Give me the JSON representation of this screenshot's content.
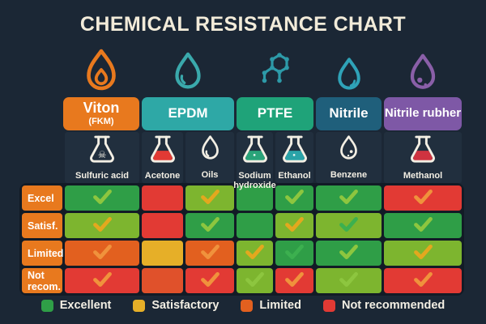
{
  "title": "CHEMICAL RESISTANCE CHART",
  "palette": {
    "background": "#1b2735",
    "panel": "#212f3e",
    "panel_gap": "#121b26",
    "title_text": "#f2ebd9",
    "ink_white": "#f3efe4",
    "label_orange": "#e8791e",
    "cell": {
      "green": "#2f9e47",
      "lightgreen": "#7db52f",
      "red": "#e23a34",
      "orange": "#e2601f",
      "yellow": "#e6af28",
      "redorange": "#e0512b"
    },
    "check": {
      "lightgreen": "#8dc63f",
      "green": "#3cb04f",
      "yellow": "#e3a81e",
      "orange": "#f0923c"
    }
  },
  "materials": [
    {
      "name": "Viton",
      "subname": "(FKM)",
      "color": "#e8791e",
      "icon": "flame-droplet-icon",
      "icon_color": "#e8791e",
      "font": 18
    },
    {
      "name": "EPDM",
      "subname": "",
      "color": "#2ea8a6",
      "icon": "droplet-icon",
      "icon_color": "#3aa9ac",
      "font": 17
    },
    {
      "name": "PTFE",
      "subname": "",
      "color": "#1fa379",
      "icon": "molecule-icon",
      "icon_color": "#2d9aa8",
      "font": 17
    },
    {
      "name": "Nitrile",
      "subname": "",
      "color": "#1f5f7b",
      "icon": "droplet-small-icon",
      "icon_color": "#2fa3b8",
      "font": 17
    },
    {
      "name": "Nitrile rubher",
      "subname": "",
      "color": "#7e58a6",
      "icon": "droplet-dots-icon",
      "icon_color": "#8a5fa8",
      "font": 15
    }
  ],
  "chemicals": [
    {
      "name": "Sulfuric acid",
      "icon": "flask-skull-icon",
      "liquid": null
    },
    {
      "name": "Acetone",
      "icon": "flask-icon",
      "liquid": "#e23a34"
    },
    {
      "name": "Oils",
      "icon": "droplet-outline-icon",
      "liquid": null
    },
    {
      "name": "Sodium hydroxide",
      "icon": "flask-dot-icon",
      "liquid": "#2aa379"
    },
    {
      "name": "Ethanol",
      "icon": "flask-dot-icon",
      "liquid": "#2aa3a8"
    },
    {
      "name": "Benzene",
      "icon": "droplet-dots-outline-icon",
      "liquid": null
    },
    {
      "name": "Methanol",
      "icon": "flask-icon",
      "liquid": "#cf3340"
    }
  ],
  "ratings_rows": [
    {
      "label": "Excel",
      "cells": [
        {
          "color": "green",
          "check": "lightgreen"
        },
        {
          "color": "red",
          "check": null
        },
        {
          "color": "lightgreen",
          "check": "yellow"
        },
        {
          "color": "green",
          "check": null
        },
        {
          "color": "green",
          "check": "lightgreen"
        },
        {
          "color": "green",
          "check": "lightgreen"
        },
        {
          "color": "red",
          "check": "orange"
        }
      ]
    },
    {
      "label": "Satisf.",
      "cells": [
        {
          "color": "lightgreen",
          "check": "yellow"
        },
        {
          "color": "red",
          "check": null
        },
        {
          "color": "green",
          "check": "lightgreen"
        },
        {
          "color": "green",
          "check": null
        },
        {
          "color": "lightgreen",
          "check": "yellow"
        },
        {
          "color": "lightgreen",
          "check": "green"
        },
        {
          "color": "green",
          "check": "lightgreen"
        }
      ]
    },
    {
      "label": "Limited",
      "cells": [
        {
          "color": "orange",
          "check": "orange"
        },
        {
          "color": "yellow",
          "check": null
        },
        {
          "color": "orange",
          "check": "orange"
        },
        {
          "color": "lightgreen",
          "check": "yellow"
        },
        {
          "color": "green",
          "check": "green"
        },
        {
          "color": "green",
          "check": "lightgreen"
        },
        {
          "color": "lightgreen",
          "check": "yellow"
        }
      ]
    },
    {
      "label": "Not recom.",
      "cells": [
        {
          "color": "red",
          "check": "orange"
        },
        {
          "color": "redorange",
          "check": null
        },
        {
          "color": "red",
          "check": "orange"
        },
        {
          "color": "lightgreen",
          "check": "lightgreen"
        },
        {
          "color": "red",
          "check": "orange"
        },
        {
          "color": "lightgreen",
          "check": "lightgreen"
        },
        {
          "color": "red",
          "check": "orange"
        }
      ]
    }
  ],
  "legend": [
    {
      "label": "Excellent",
      "color": "#2f9e47"
    },
    {
      "label": "Satisfactory",
      "color": "#e6af28"
    },
    {
      "label": "Limited",
      "color": "#e2601f"
    },
    {
      "label": "Not recommended",
      "color": "#e23a34"
    }
  ],
  "chart_data": {
    "type": "table",
    "title": "CHEMICAL RESISTANCE CHART",
    "row_labels": [
      "Excel",
      "Satisf.",
      "Limited",
      "Not recom."
    ],
    "columns": [
      "Sulfuric acid",
      "Acetone",
      "Oils",
      "Sodium hydroxide",
      "Ethanol",
      "Benzene",
      "Methanol"
    ],
    "column_groups": [
      {
        "material": "Viton (FKM)",
        "chemicals": [
          "Sulfuric acid"
        ]
      },
      {
        "material": "EPDM",
        "chemicals": [
          "Acetone",
          "Oils"
        ]
      },
      {
        "material": "PTFE",
        "chemicals": [
          "Sodium hydroxide",
          "Ethanol"
        ]
      },
      {
        "material": "Nitrile",
        "chemicals": [
          "Benzene"
        ]
      },
      {
        "material": "Nitrile rubher",
        "chemicals": [
          "Methanol"
        ]
      }
    ],
    "legend": [
      "Excellent",
      "Satisfactory",
      "Limited",
      "Not recommended"
    ],
    "cell_colors": [
      [
        "green",
        "red",
        "lightgreen",
        "green",
        "green",
        "green",
        "red"
      ],
      [
        "lightgreen",
        "red",
        "green",
        "green",
        "lightgreen",
        "lightgreen",
        "green"
      ],
      [
        "orange",
        "yellow",
        "orange",
        "lightgreen",
        "green",
        "green",
        "lightgreen"
      ],
      [
        "red",
        "redorange",
        "red",
        "lightgreen",
        "red",
        "lightgreen",
        "red"
      ]
    ],
    "cell_checks": [
      [
        true,
        false,
        true,
        false,
        true,
        true,
        true
      ],
      [
        true,
        false,
        true,
        false,
        true,
        true,
        true
      ],
      [
        true,
        false,
        true,
        true,
        true,
        true,
        true
      ],
      [
        true,
        false,
        true,
        true,
        true,
        true,
        true
      ]
    ]
  }
}
